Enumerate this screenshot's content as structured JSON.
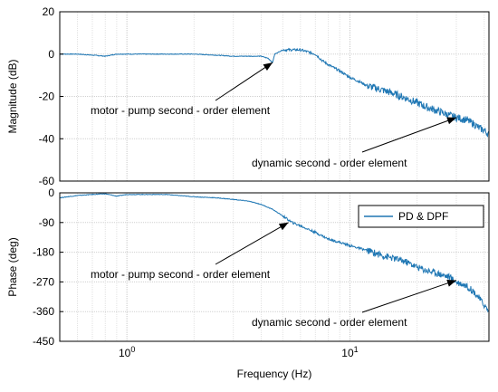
{
  "chart_data": [
    {
      "type": "line",
      "panel": "magnitude",
      "ylabel": "Magnitude (dB)",
      "xscale": "log",
      "xlim": [
        0.5,
        42
      ],
      "ylim": [
        -60,
        20
      ],
      "yticks": [
        20,
        0,
        -20,
        -40,
        -60
      ],
      "ytick_labels": [
        "20",
        "0",
        "-20",
        "-40",
        "-60"
      ],
      "grid": true,
      "series": [
        {
          "name": "PD & DPF",
          "color": "#1f77b4",
          "x": [
            0.5,
            0.6,
            0.7,
            0.8,
            0.9,
            1.0,
            1.2,
            1.5,
            2.0,
            2.5,
            3.0,
            3.5,
            4.0,
            4.3,
            4.5,
            4.6,
            4.8,
            5.0,
            5.5,
            6.0,
            6.5,
            7.0,
            7.5,
            8.0,
            9.0,
            10,
            11,
            12,
            14,
            16,
            18,
            20,
            22,
            25,
            28,
            30,
            33,
            36,
            38,
            40,
            42
          ],
          "y": [
            0,
            0,
            -0.5,
            -1,
            0,
            0,
            0,
            0,
            0,
            -0.5,
            -1,
            -1,
            -1,
            -2,
            -4,
            0,
            1,
            2,
            2,
            2,
            1,
            0,
            -3,
            -5,
            -8,
            -11,
            -13,
            -15,
            -17,
            -19,
            -21,
            -23,
            -25,
            -27,
            -29,
            -30,
            -31,
            -33,
            -35,
            -36,
            -38
          ]
        }
      ],
      "annotations": [
        {
          "text": "motor - pump second - order element",
          "arrow_to": [
            4.5,
            -4
          ]
        },
        {
          "text": "dynamic second - order element",
          "arrow_to": [
            30,
            -30
          ]
        }
      ]
    },
    {
      "type": "line",
      "panel": "phase",
      "xlabel": "Frequency  (Hz)",
      "ylabel": "Phase (deg)",
      "xscale": "log",
      "xlim": [
        0.5,
        42
      ],
      "ylim": [
        -450,
        0
      ],
      "yticks": [
        0,
        -90,
        -180,
        -270,
        -360,
        -450
      ],
      "ytick_labels": [
        "0",
        "-90",
        "-180",
        "-270",
        "-360",
        "-450"
      ],
      "xticks": [
        1,
        10
      ],
      "xtick_base": "10",
      "xtick_exponents": [
        "0",
        "1"
      ],
      "grid": true,
      "legend": {
        "position": "top-right",
        "entries": [
          "PD & DPF"
        ]
      },
      "series": [
        {
          "name": "PD & DPF",
          "color": "#1f77b4",
          "x": [
            0.5,
            0.6,
            0.7,
            0.8,
            0.9,
            1.0,
            1.2,
            1.5,
            2.0,
            2.5,
            3.0,
            3.5,
            4.0,
            4.5,
            5.0,
            5.5,
            6.0,
            7.0,
            8.0,
            9.0,
            10,
            12,
            14,
            16,
            18,
            20,
            22,
            25,
            28,
            30,
            33,
            36,
            38,
            40,
            42
          ],
          "y": [
            -15,
            -8,
            -5,
            -3,
            -10,
            -5,
            -5,
            -5,
            -12,
            -15,
            -20,
            -25,
            -35,
            -50,
            -70,
            -90,
            -100,
            -120,
            -140,
            -150,
            -160,
            -175,
            -190,
            -200,
            -210,
            -225,
            -235,
            -245,
            -255,
            -270,
            -280,
            -300,
            -320,
            -340,
            -360
          ]
        }
      ],
      "annotations": [
        {
          "text": "motor - pump second - order element",
          "arrow_to": [
            5.3,
            -90
          ]
        },
        {
          "text": "dynamic second - order element",
          "arrow_to": [
            30,
            -265
          ]
        }
      ]
    }
  ]
}
